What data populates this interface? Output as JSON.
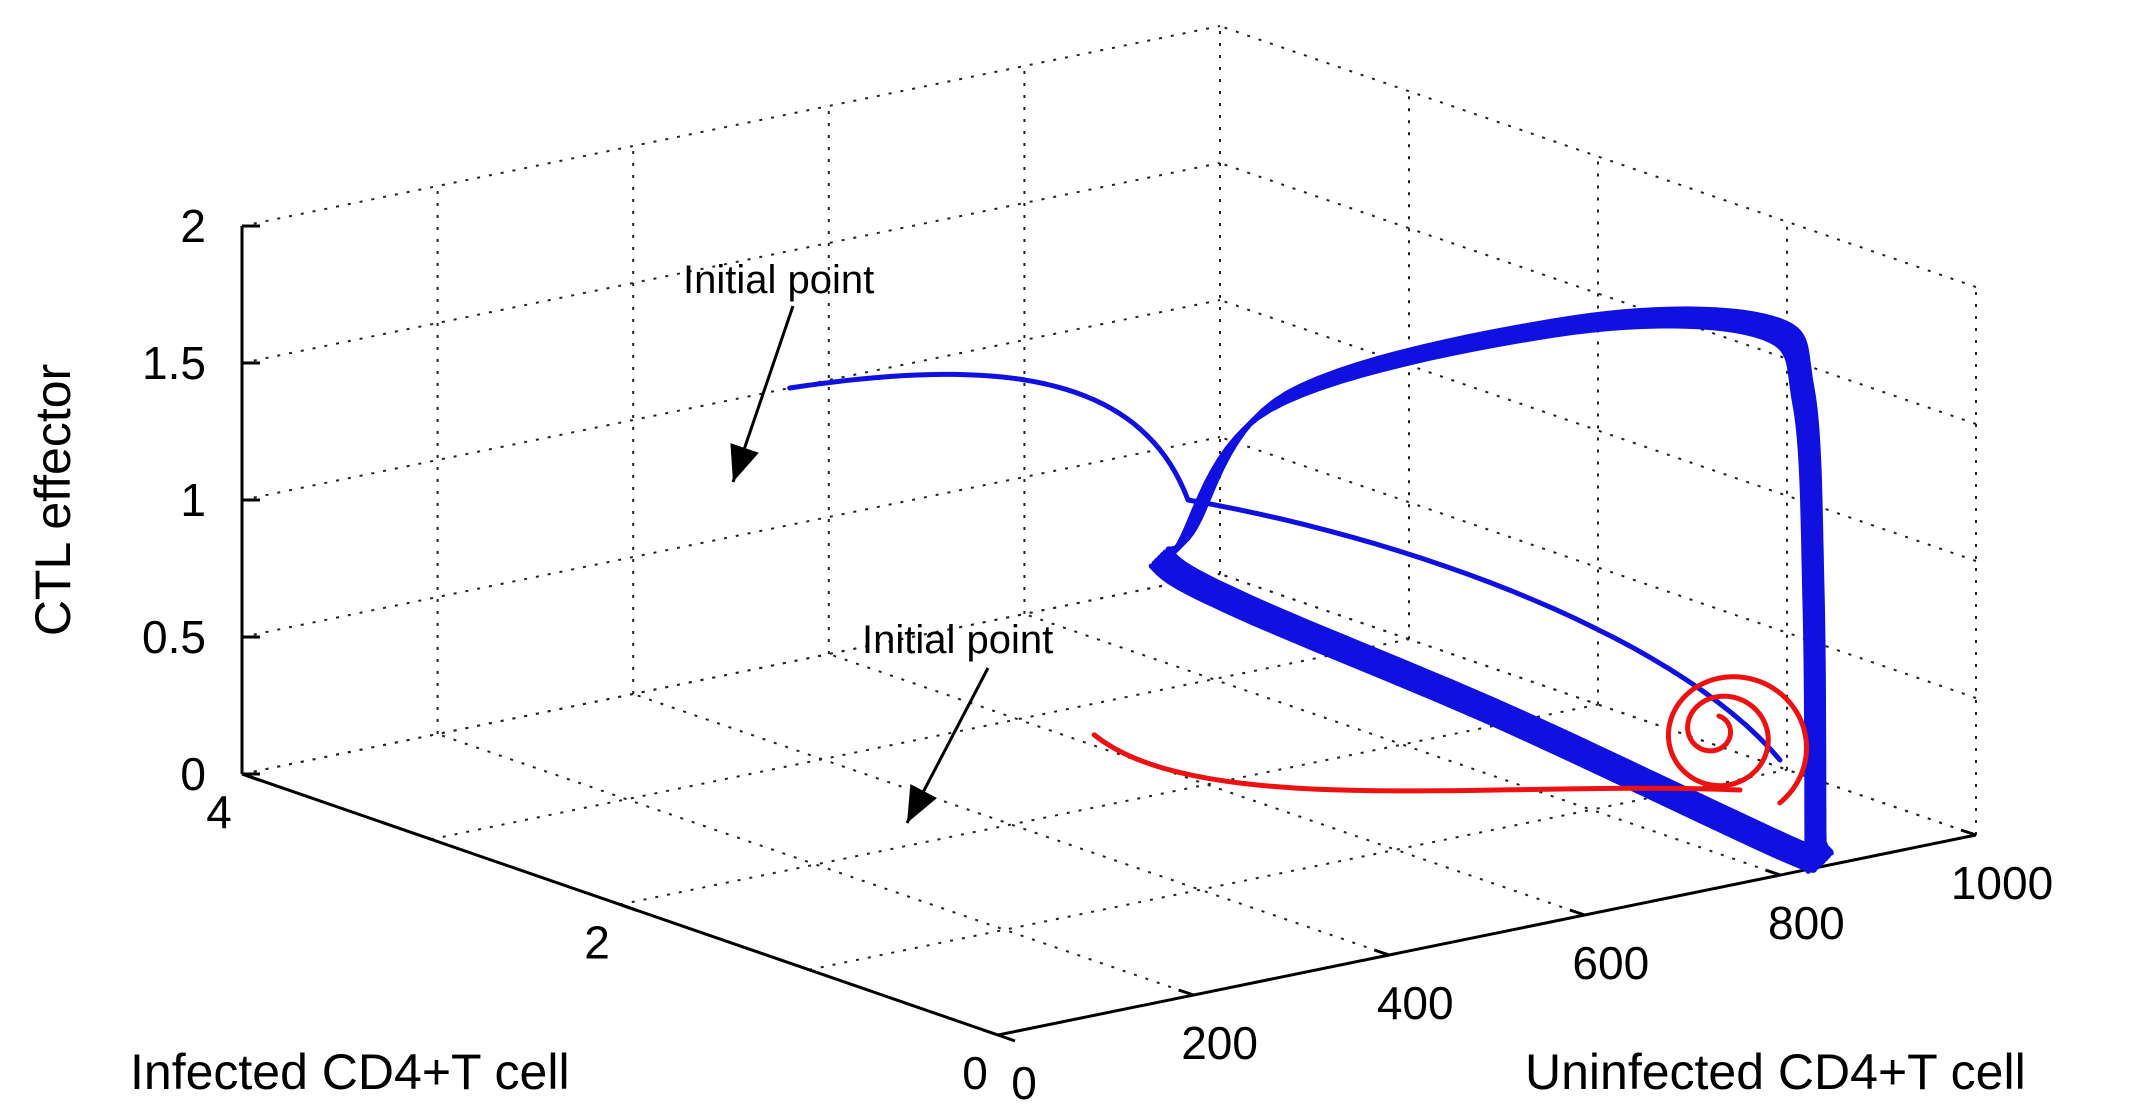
{
  "chart_data": {
    "type": "line",
    "projection": "3d",
    "grid": true,
    "xlabel": "Uninfected CD4+T cell",
    "ylabel": "Infected CD4+T cell",
    "zlabel": "CTL effector",
    "xlim": [
      0,
      1000
    ],
    "ylim": [
      0,
      4
    ],
    "zlim": [
      0,
      2
    ],
    "xticks": [
      "0",
      "200",
      "400",
      "600",
      "800",
      "1000"
    ],
    "yticks": [
      "0",
      "2",
      "4"
    ],
    "zticks": [
      "0",
      "0.5",
      "1",
      "1.5",
      "2"
    ],
    "series": [
      {
        "color": "#1010e0",
        "trajectory": "approaches limit cycle",
        "start": {
          "x": 560,
          "y": 4.0,
          "z": 1.0
        },
        "limit_cycle": {
          "x_range": [
            90,
            800
          ],
          "y_range": [
            0.2,
            3.6
          ],
          "z_range": [
            0.75,
            1.6
          ]
        }
      },
      {
        "color": "#ee1111",
        "trajectory": "spirals to equilibrium",
        "start": {
          "x": 620,
          "y": 2.7,
          "z": 0.0
        },
        "equilibrium_region": {
          "x_range": [
            700,
            890
          ],
          "y_range": [
            0.5,
            2.0
          ],
          "z_range": [
            0.0,
            0.5
          ]
        }
      }
    ],
    "annotations": [
      {
        "text": "Initial point",
        "target_series": 0
      },
      {
        "text": "Initial point",
        "target_series": 1
      }
    ]
  }
}
